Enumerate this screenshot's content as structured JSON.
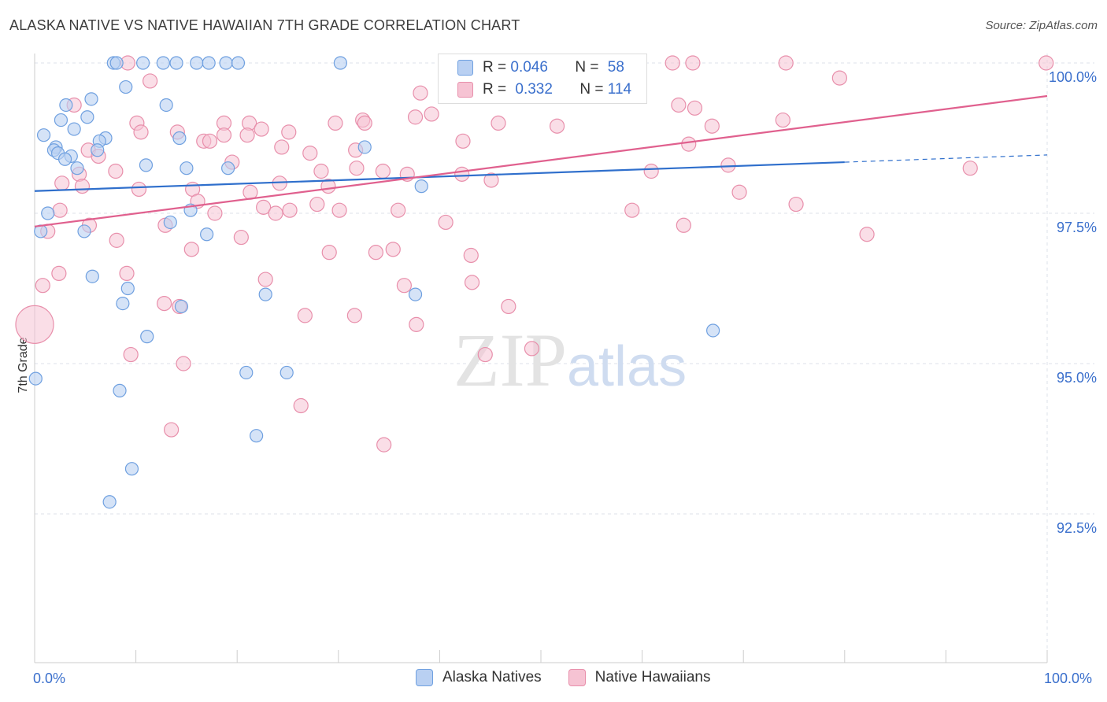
{
  "title": "ALASKA NATIVE VS NATIVE HAWAIIAN 7TH GRADE CORRELATION CHART",
  "source": "Source: ZipAtlas.com",
  "watermark": {
    "zip": "ZIP",
    "atlas": "atlas"
  },
  "colors": {
    "blue": "#6fa0e0",
    "blue_fill": "#b9d0f2",
    "blue_line": "#2f6fcc",
    "pink": "#e88fab",
    "pink_fill": "#f6c3d3",
    "pink_line": "#e0608e",
    "axis_text": "#3a6fcc",
    "grid": "#dde2ea"
  },
  "legend": {
    "rows": [
      {
        "r_label": "R =",
        "r_value": "0.046",
        "n_label": "N =",
        "n_value": "58"
      },
      {
        "r_label": "R =",
        "r_value": "0.332",
        "n_label": "N =",
        "n_value": "114"
      }
    ]
  },
  "bottom_legend": {
    "series1": "Alaska Natives",
    "series2": "Native Hawaiians"
  },
  "x_axis": {
    "min_label": "0.0%",
    "max_label": "100.0%"
  },
  "chart_data": {
    "type": "scatter",
    "title": "ALASKA NATIVE VS NATIVE HAWAIIAN 7TH GRADE CORRELATION CHART",
    "xlabel": "",
    "ylabel": "7th Grade",
    "xlim": [
      0,
      100
    ],
    "ylim": [
      90.0,
      100.4
    ],
    "y_ticks": [
      {
        "value": 100.0,
        "label": "100.0%"
      },
      {
        "value": 97.5,
        "label": "97.5%"
      },
      {
        "value": 95.0,
        "label": "95.0%"
      },
      {
        "value": 92.5,
        "label": "92.5%"
      }
    ],
    "series": [
      {
        "name": "Alaska Natives",
        "R": 0.046,
        "N": 58,
        "trend": {
          "x0": 0,
          "y0": 97.87,
          "x1": 80,
          "y1": 98.35,
          "dash_to_x": 100,
          "dash_to_y": 98.47
        },
        "points": [
          [
            7.8,
            100
          ],
          [
            8.1,
            100
          ],
          [
            10.7,
            100
          ],
          [
            12.7,
            100
          ],
          [
            14.0,
            100
          ],
          [
            16.0,
            100
          ],
          [
            17.2,
            100
          ],
          [
            18.9,
            100
          ],
          [
            20.1,
            100
          ],
          [
            30.2,
            100
          ],
          [
            9.0,
            99.6
          ],
          [
            5.6,
            99.4
          ],
          [
            3.1,
            99.3
          ],
          [
            13.0,
            99.3
          ],
          [
            2.6,
            99.05
          ],
          [
            5.2,
            99.1
          ],
          [
            3.9,
            98.9
          ],
          [
            0.9,
            98.8
          ],
          [
            7.0,
            98.75
          ],
          [
            14.3,
            98.75
          ],
          [
            6.4,
            98.7
          ],
          [
            2.1,
            98.6
          ],
          [
            1.9,
            98.55
          ],
          [
            6.2,
            98.55
          ],
          [
            2.3,
            98.5
          ],
          [
            3.6,
            98.45
          ],
          [
            3.0,
            98.4
          ],
          [
            32.6,
            98.6
          ],
          [
            11.0,
            98.3
          ],
          [
            15.0,
            98.25
          ],
          [
            4.2,
            98.25
          ],
          [
            19.1,
            98.25
          ],
          [
            38.2,
            97.95
          ],
          [
            1.3,
            97.5
          ],
          [
            15.4,
            97.55
          ],
          [
            13.4,
            97.35
          ],
          [
            0.6,
            97.2
          ],
          [
            4.9,
            97.2
          ],
          [
            17.0,
            97.15
          ],
          [
            5.7,
            96.45
          ],
          [
            9.2,
            96.25
          ],
          [
            22.8,
            96.15
          ],
          [
            37.6,
            96.15
          ],
          [
            8.7,
            96.0
          ],
          [
            14.5,
            95.95
          ],
          [
            11.1,
            95.45
          ],
          [
            67.0,
            95.55
          ],
          [
            0.1,
            94.75
          ],
          [
            20.9,
            94.85
          ],
          [
            24.9,
            94.85
          ],
          [
            8.4,
            94.55
          ],
          [
            21.9,
            93.8
          ],
          [
            9.6,
            93.25
          ],
          [
            7.4,
            92.7
          ]
        ]
      },
      {
        "name": "Native Hawaiians",
        "R": 0.332,
        "N": 114,
        "trend": {
          "x0": 0,
          "y0": 97.28,
          "x1": 100,
          "y1": 99.45
        },
        "points": [
          [
            9.2,
            100
          ],
          [
            41.2,
            100
          ],
          [
            41.5,
            100
          ],
          [
            46.0,
            100
          ],
          [
            59.4,
            100
          ],
          [
            63.0,
            100
          ],
          [
            65.0,
            100
          ],
          [
            74.2,
            100
          ],
          [
            99.9,
            100
          ],
          [
            11.4,
            99.7
          ],
          [
            79.5,
            99.75
          ],
          [
            38.1,
            99.5
          ],
          [
            3.9,
            99.3
          ],
          [
            63.6,
            99.3
          ],
          [
            65.2,
            99.25
          ],
          [
            10.1,
            99.0
          ],
          [
            18.7,
            99.0
          ],
          [
            21.2,
            99.0
          ],
          [
            29.7,
            99.0
          ],
          [
            32.4,
            99.05
          ],
          [
            32.6,
            99.0
          ],
          [
            37.6,
            99.1
          ],
          [
            39.2,
            99.15
          ],
          [
            45.8,
            99.0
          ],
          [
            51.6,
            98.95
          ],
          [
            66.9,
            98.95
          ],
          [
            73.9,
            99.05
          ],
          [
            10.5,
            98.85
          ],
          [
            14.1,
            98.85
          ],
          [
            18.7,
            98.8
          ],
          [
            21.0,
            98.8
          ],
          [
            22.4,
            98.9
          ],
          [
            25.1,
            98.85
          ],
          [
            16.7,
            98.7
          ],
          [
            17.3,
            98.7
          ],
          [
            42.3,
            98.7
          ],
          [
            64.6,
            98.65
          ],
          [
            5.3,
            98.55
          ],
          [
            24.4,
            98.6
          ],
          [
            27.2,
            98.5
          ],
          [
            31.7,
            98.55
          ],
          [
            6.3,
            98.45
          ],
          [
            19.5,
            98.35
          ],
          [
            8.0,
            98.2
          ],
          [
            28.3,
            98.2
          ],
          [
            31.8,
            98.25
          ],
          [
            34.4,
            98.2
          ],
          [
            36.8,
            98.15
          ],
          [
            42.2,
            98.15
          ],
          [
            60.9,
            98.2
          ],
          [
            68.5,
            98.3
          ],
          [
            92.4,
            98.25
          ],
          [
            4.4,
            98.15
          ],
          [
            2.7,
            98.0
          ],
          [
            4.7,
            97.95
          ],
          [
            24.2,
            98.0
          ],
          [
            29.0,
            97.95
          ],
          [
            45.1,
            98.05
          ],
          [
            10.3,
            97.9
          ],
          [
            15.6,
            97.9
          ],
          [
            21.3,
            97.85
          ],
          [
            69.6,
            97.85
          ],
          [
            16.1,
            97.7
          ],
          [
            27.9,
            97.65
          ],
          [
            75.2,
            97.65
          ],
          [
            2.5,
            97.55
          ],
          [
            17.8,
            97.5
          ],
          [
            22.6,
            97.6
          ],
          [
            23.8,
            97.5
          ],
          [
            25.2,
            97.55
          ],
          [
            30.1,
            97.55
          ],
          [
            35.9,
            97.55
          ],
          [
            59.0,
            97.55
          ],
          [
            40.6,
            97.35
          ],
          [
            12.9,
            97.3
          ],
          [
            5.4,
            97.3
          ],
          [
            64.1,
            97.3
          ],
          [
            1.3,
            97.2
          ],
          [
            82.2,
            97.15
          ],
          [
            20.4,
            97.1
          ],
          [
            8.1,
            97.05
          ],
          [
            15.5,
            96.9
          ],
          [
            29.1,
            96.85
          ],
          [
            33.7,
            96.85
          ],
          [
            35.4,
            96.9
          ],
          [
            43.1,
            96.8
          ],
          [
            2.4,
            96.5
          ],
          [
            9.1,
            96.5
          ],
          [
            22.8,
            96.4
          ],
          [
            43.2,
            96.35
          ],
          [
            0.8,
            96.3
          ],
          [
            36.5,
            96.3
          ],
          [
            12.8,
            96.0
          ],
          [
            14.3,
            95.95
          ],
          [
            46.8,
            95.95
          ],
          [
            26.7,
            95.8
          ],
          [
            31.6,
            95.8
          ],
          [
            37.7,
            95.65
          ],
          [
            0.0,
            95.65
          ],
          [
            9.5,
            95.15
          ],
          [
            49.1,
            95.25
          ],
          [
            44.5,
            95.15
          ],
          [
            14.7,
            95.0
          ],
          [
            26.3,
            94.3
          ],
          [
            13.5,
            93.9
          ],
          [
            34.5,
            93.65
          ]
        ]
      }
    ]
  }
}
